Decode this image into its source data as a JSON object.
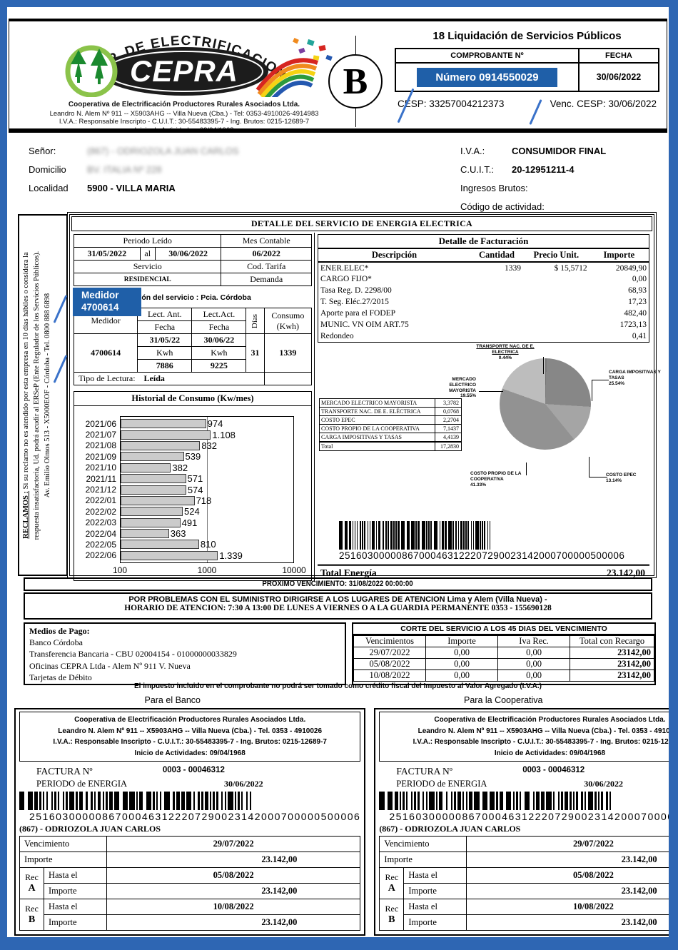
{
  "colors": {
    "page_border": "#2e66b3",
    "annotation_blue": "#1f5fa8",
    "slash_blue": "#3a72c9",
    "bar_fill": "#cbcbcb"
  },
  "header": {
    "arc_text": "COOP. DE ELECTRIFICACION",
    "brand": "CEPRA",
    "org_name": "Cooperativa de Electrificación Productores Rurales Asociados Ltda.",
    "address": "Leandro N. Alem  Nº 911  -- X5903AHG -- Villa Nueva (Cba.) - Tel: 0353-4910026-4914983",
    "tax_line": "I.V.A.: Responsable Inscripto - C.U.I.T.: 30-55483395-7 - Ing. Brutos: 0215-12689-7",
    "activity_line": "Inicio de Actividades: 09/04/1968",
    "letter": "B",
    "doc_type": "18 Liquidación de Servicios Públicos",
    "comprobante_label": "COMPROBANTE Nº",
    "fecha_label": "FECHA",
    "numero_badge": "Número 0914550029",
    "fecha_value": "30/06/2022",
    "cesp": "CESP: 33257004212373",
    "venc_cesp": "Venc. CESP: 30/06/2022"
  },
  "customer": {
    "senor_label": "Señor:",
    "senor_value": "(867) - ODRIOZOLA JUAN CARLOS",
    "domicilio_label": "Domicilio",
    "domicilio_value": "BV. ITALIA Nº 228",
    "localidad_label": "Localidad",
    "localidad_value": "5900 - VILLA MARIA",
    "iva_label": "I.V.A.:",
    "iva_value": "CONSUMIDOR FINAL",
    "cuit_label": "C.U.I.T.:",
    "cuit_value": "20-12951211-4",
    "ingresos_label": "Ingresos Brutos:",
    "codigo_label": "Código de actividad:"
  },
  "reclamos": {
    "title": "RECLAMOS :",
    "line1_rest": "Si su reclamo no es atendido por esta empresa en 10 días hábiles o considera la",
    "line2": "respuesta insatisfactoria, Ud. podrá acudir al ERSeP (Ente Regulador de los Servicios Públicos).",
    "line3": "Av. Emilio Olmos 513 - X5000EOF - Córdoba - Tel. 0800 888 6898"
  },
  "detail": {
    "section_title": "DETALLE DEL SERVICIO DE ENERGIA ELECTRICA",
    "periodo_label": "Periodo Leído",
    "mes_label": "Mes Contable",
    "periodo_from": "31/05/2022",
    "periodo_al": "al",
    "periodo_to": "30/06/2022",
    "mes_value": "06/2022",
    "servicio_label": "Servicio",
    "tarifa_label": "Cod. Tarifa",
    "demanda_label": "Demanda",
    "servicio_value": "RESIDENCIAL",
    "ubicacion": "Ubicación del servicio : Pcia. Córdoba",
    "medidor_badge_line1": "Medidor",
    "medidor_badge_line2": "4700614"
  },
  "meter": {
    "medidor_label": "Medidor",
    "lect_ant_label": "Lect. Ant.",
    "lect_act_label": "Lect.Act.",
    "fecha_label": "Fecha",
    "dias_label": "Días",
    "consumo_label_1": "Consumo",
    "consumo_label_2": "(Kwh)",
    "medidor_value": "4700614",
    "fecha_ant": "31/05/22",
    "fecha_act": "30/06/22",
    "kwh_label": "Kwh",
    "lect_ant_value": "7886",
    "lect_act_value": "9225",
    "dias_value": "31",
    "consumo_value": "1339",
    "tipo_label": "Tipo de Lectura:",
    "tipo_value": "Leída"
  },
  "chart_data": [
    {
      "type": "bar",
      "orientation": "horizontal",
      "title": "Historial de Consumo (Kw/mes)",
      "categories": [
        "2021/06",
        "2021/07",
        "2021/08",
        "2021/09",
        "2021/10",
        "2021/11",
        "2021/12",
        "2022/01",
        "2022/02",
        "2022/03",
        "2022/04",
        "2022/05",
        "2022/06"
      ],
      "values": [
        974,
        1108,
        832,
        539,
        382,
        571,
        574,
        718,
        524,
        491,
        363,
        810,
        1339
      ],
      "labels": [
        "974",
        "1.108",
        "832",
        "539",
        "382",
        "571",
        "574",
        "718",
        "524",
        "491",
        "363",
        "810",
        "1.339"
      ],
      "x_scale": "log",
      "x_ticks": [
        100,
        1000,
        10000
      ],
      "xlim": [
        100,
        10000
      ],
      "grid": "vertical line at 1000"
    },
    {
      "type": "pie",
      "slices": [
        {
          "label": "TRANSPORTE NAC. DE E. ELECTRICA",
          "pct": 0.44,
          "pct_label": "0.44%"
        },
        {
          "label": "CARGA IMPOSITIVAS Y TASAS",
          "pct": 25.54,
          "pct_label": "25.54%"
        },
        {
          "label": "COSTO EPEC",
          "pct": 13.14,
          "pct_label": "13.14%"
        },
        {
          "label": "COSTO PROPIO DE LA COOPERATIVA",
          "pct": 41.33,
          "pct_label": "41.33%"
        },
        {
          "label": "MERCADO ELECTRICO MAYORISTA",
          "pct": 19.55,
          "pct_label": "19.55%"
        }
      ],
      "colors": [
        "#6f6f6f",
        "#878787",
        "#a5a5a5",
        "#929292",
        "#bdbdbd"
      ]
    }
  ],
  "billing": {
    "title": "Detalle de Facturación",
    "headers": [
      "Descripción",
      "Cantidad",
      "Precio Unit.",
      "Importe"
    ],
    "rows": [
      [
        "ENER.ELEC*",
        "1339",
        "$ 15,5712",
        "20849,90"
      ],
      [
        "CARGO FIJO*",
        "",
        "",
        "0,00"
      ],
      [
        "Tasa Reg. D. 2298/00",
        "",
        "",
        "68,93"
      ],
      [
        "T. Seg. Eléc.27/2015",
        "",
        "",
        "17,23"
      ],
      [
        "Aporte para el FODEP",
        "",
        "",
        "482,40"
      ],
      [
        "MUNIC. VN OIM ART.75",
        "",
        "",
        "1723,13"
      ],
      [
        "Redondeo",
        "",
        "",
        "0,41"
      ]
    ]
  },
  "cost_table": {
    "rows": [
      [
        "MERCADO ELECTRICO MAYORISTA",
        "3,3782"
      ],
      [
        "TRANSPORTE NAC. DE E. ELÉCTRICA",
        "0,0768"
      ],
      [
        "COSTO EPEC",
        "2,2704"
      ],
      [
        "COSTO PROPIO DE LA COOPERATIVA",
        "7,1437"
      ],
      [
        "CARGA IMPOSITIVAS Y TASAS",
        "4,4139"
      ]
    ],
    "total_label": "Total",
    "total_value": "17,2830"
  },
  "barcode": {
    "number": "25160300000867000463122207290023142000700000500006"
  },
  "total": {
    "label": "Total Energía",
    "value": "23.142,00"
  },
  "notices": {
    "proximo": "PROXIMO VENCIMIENTO: 31/08/2022  00:00:00",
    "problemas_l1": "POR PROBLEMAS CON EL SUMINISTRO DIRIGIRSE A LOS LUGARES DE ATENCION Lima y Alem (Villa Nueva) -",
    "problemas_l2": "HORARIO DE ATENCION: 7:30 A 13:00 DE LUNES A VIERNES O A LA GUARDIA PERMANENTE 0353 - 155690128",
    "impuesto": "El impuesto incluido en el comprobante no podrá ser tomado como crédito fiscal del Impuesto al Valor Agregado (I.V.A.)"
  },
  "payment": {
    "title": "Medios de Pago:",
    "items": [
      "Banco Córdoba",
      "Transferencia Bancaria - CBU 02004154 - 01000000033829",
      "Oficinas CEPRA Ltda - Alem Nº 911 V. Nueva",
      "Tarjetas de Débito"
    ]
  },
  "corte": {
    "title": "CORTE DEL SERVICIO A LOS 45 DIAS DEL VENCIMIENTO",
    "headers": [
      "Vencimientos",
      "Importe",
      "Iva Rec.",
      "Total con Recargo"
    ],
    "rows": [
      [
        "29/07/2022",
        "0,00",
        "0,00",
        "23142,00"
      ],
      [
        "05/08/2022",
        "0,00",
        "0,00",
        "23142,00"
      ],
      [
        "10/08/2022",
        "0,00",
        "0,00",
        "23142,00"
      ]
    ]
  },
  "stub_labels": {
    "bank": "Para el Banco",
    "coop": "Para la Cooperativa"
  },
  "stub": {
    "org": "Cooperativa de Electrificación Productores Rurales Asociados Ltda.",
    "addr": "Leandro N. Alem  Nº 911  -- X5903AHG -- Villa Nueva (Cba.) - Tel. 0353 - 4910026",
    "tax": "I.V.A.: Responsable Inscripto - C.U.I.T.: 30-55483395-7 - Ing. Brutos: 0215-12689-7",
    "inicio": "Inicio de Actividades: 09/04/1968",
    "factura_label": "FACTURA Nº",
    "factura_value": "0003 - 00046312",
    "periodo_label": "PERIODO de ENERGIA",
    "periodo_value": "30/06/2022",
    "customer": "(867) - ODRIOZOLA JUAN CARLOS",
    "venc_label": "Vencimiento",
    "venc_value": "29/07/2022",
    "importe_label": "Importe",
    "importe_value": "23.142,00",
    "rec_label": "Rec",
    "a_label": "A",
    "b_label": "B",
    "hasta_label": "Hasta el",
    "rec_a_date": "05/08/2022",
    "rec_a_importe": "23.142,00",
    "rec_b_date": "10/08/2022",
    "rec_b_importe": "23.142,00"
  }
}
